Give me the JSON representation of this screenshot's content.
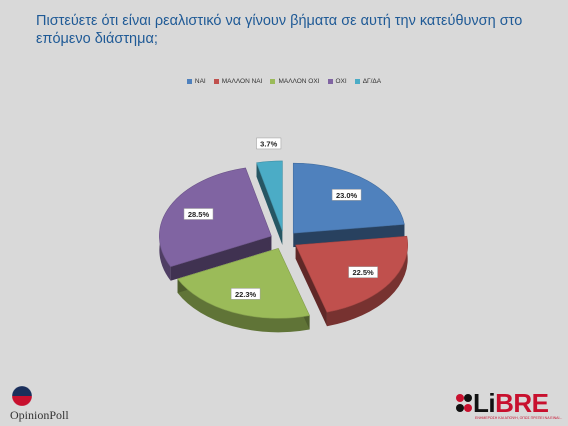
{
  "page": {
    "title": "Πιστεύετε ότι είναι ρεαλιστικό να γίνουν βήματα σε αυτή την κατεύθυνση στο επόμενο διάστημα;"
  },
  "chart_data": {
    "type": "pie",
    "title": "Πιστεύετε ότι είναι ρεαλιστικό να γίνουν βήματα σε αυτή την κατεύθυνση στο επόμενο διάστημα;",
    "legend_position": "top",
    "categories": [
      "ΝΑΙ",
      "ΜΑΛΛΟΝ ΝΑΙ",
      "ΜΑΛΛΟΝ ΟΧΙ",
      "ΟΧΙ",
      "ΔΓ/ΔΑ"
    ],
    "values": [
      23.0,
      22.5,
      22.3,
      28.5,
      3.7
    ],
    "labels": [
      "23.0%",
      "22.5%",
      "22.3%",
      "28.5%",
      "3.7%"
    ],
    "colors": [
      "#4f81bd",
      "#c0504d",
      "#9bbb59",
      "#8064a2",
      "#4bacc6"
    ],
    "style": "3d-exploded"
  },
  "logos": {
    "left": "OpinionPoll",
    "right_brand_prefix": "Li",
    "right_brand_suffix": "BRE",
    "right_tagline": "ΕΝΗΜΕΡΩΣΗ ΚΑΙ ΑΠΟΨΗ, ΟΠΩΣ ΠΡΕΠΕΙ ΝΑ ΕΙΝΑΙ..."
  }
}
